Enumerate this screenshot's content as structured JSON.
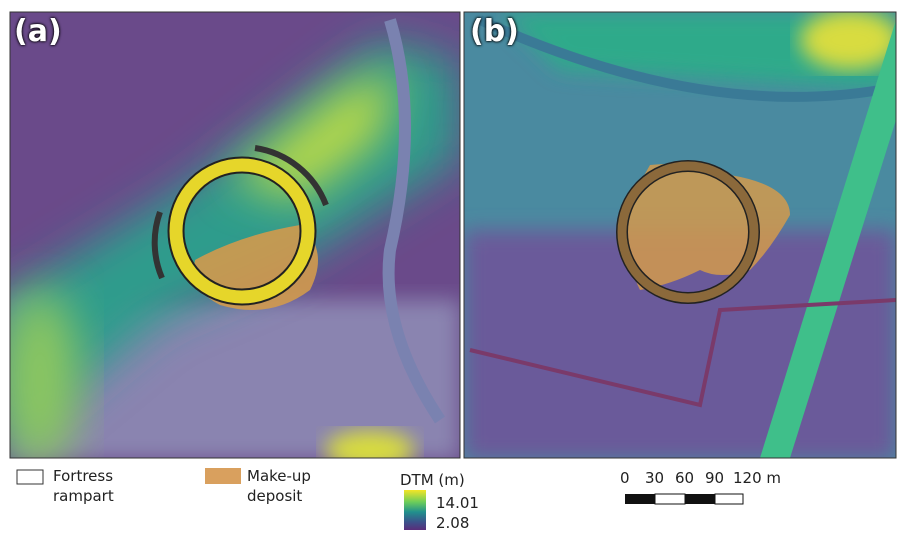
{
  "panels": [
    {
      "label": "(a)"
    },
    {
      "label": "(b)"
    }
  ],
  "legend": {
    "rampart": "Fortress rampart",
    "deposit": "Make-up deposit",
    "dtm_title": "DTM (m)",
    "dtm_max": "14.01",
    "dtm_min": "2.08"
  },
  "scale_bar": {
    "labels": [
      "0",
      "30",
      "60",
      "90",
      "120 m"
    ]
  }
}
